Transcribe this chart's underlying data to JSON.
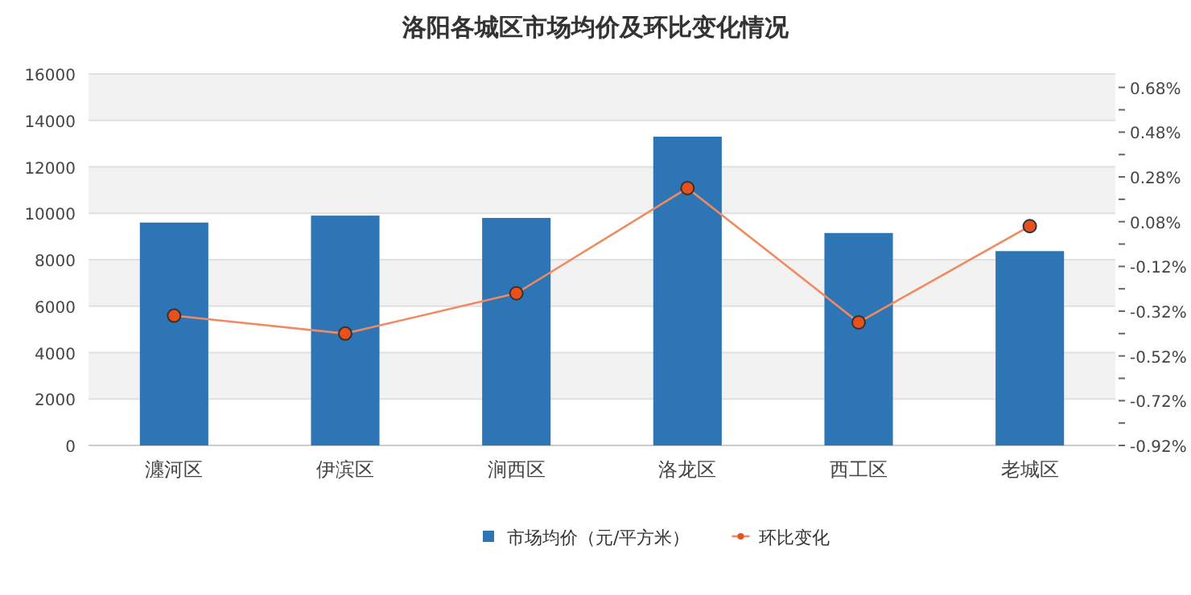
{
  "chart_data": {
    "type": "bar",
    "title": "洛阳各城区市场均价及环比变化情况",
    "categories": [
      "瀍河区",
      "伊滨区",
      "涧西区",
      "洛龙区",
      "西工区",
      "老城区"
    ],
    "series": [
      {
        "name": "市场均价（元/平方米）",
        "color": "#2e75b6",
        "values": [
          9600,
          9900,
          9800,
          13300,
          9150,
          8370
        ]
      },
      {
        "name": "环比变化",
        "type": "line",
        "axis": "y2",
        "color": "#f08a60",
        "marker": "circle",
        "values": [
          -0.34,
          -0.42,
          -0.24,
          0.23,
          -0.37,
          0.06
        ]
      }
    ],
    "ylim": [
      0,
      16000
    ],
    "yticks": [
      0,
      2000,
      4000,
      6000,
      8000,
      10000,
      12000,
      14000,
      16000
    ],
    "y2lim": [
      -0.92,
      0.74
    ],
    "y2ticks": [
      {
        "value": -0.92,
        "label": "-0.92%"
      },
      {
        "value": -0.82,
        "label": null
      },
      {
        "value": -0.72,
        "label": "-0.72%"
      },
      {
        "value": -0.62,
        "label": null
      },
      {
        "value": -0.52,
        "label": "-0.52%"
      },
      {
        "value": -0.42,
        "label": null
      },
      {
        "value": -0.32,
        "label": "-0.32%"
      },
      {
        "value": -0.22,
        "label": null
      },
      {
        "value": -0.12,
        "label": "-0.12%"
      },
      {
        "value": -0.02,
        "label": null
      },
      {
        "value": 0.08,
        "label": "0.08%"
      },
      {
        "value": 0.18,
        "label": null
      },
      {
        "value": 0.28,
        "label": "0.28%"
      },
      {
        "value": 0.38,
        "label": null
      },
      {
        "value": 0.48,
        "label": "0.48%"
      },
      {
        "value": 0.58,
        "label": null
      },
      {
        "value": 0.68,
        "label": "0.68%"
      }
    ],
    "grid": "y",
    "legend": "bottom"
  }
}
